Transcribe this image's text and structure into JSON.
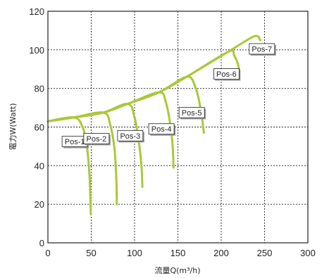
{
  "chart_data": {
    "type": "line",
    "xlabel": "流量Q(m³/h)",
    "ylabel": "電力W(Watt)",
    "xlim": [
      0,
      300
    ],
    "ylim": [
      0,
      120
    ],
    "xticks": [
      "0",
      "50",
      "100",
      "150",
      "200",
      "250",
      "300"
    ],
    "yticks": [
      "0",
      "20",
      "40",
      "60",
      "80",
      "100",
      "120"
    ],
    "grid": true,
    "color": "#a9c83a",
    "envelope": {
      "x": [
        0,
        30,
        64,
        92,
        128,
        160,
        208,
        238,
        245
      ],
      "y": [
        63,
        65,
        67.5,
        72,
        78,
        86,
        99,
        107,
        105
      ]
    },
    "series": [
      {
        "name": "Pos-1",
        "x": [
          0,
          30,
          40,
          45,
          48,
          49,
          49.5
        ],
        "y": [
          63,
          65,
          60,
          50,
          35,
          22,
          15
        ]
      },
      {
        "name": "Pos-2",
        "x": [
          0,
          30,
          64,
          72,
          77,
          79,
          79.5
        ],
        "y": [
          63,
          65,
          67.5,
          61,
          48,
          32,
          20
        ]
      },
      {
        "name": "Pos-3",
        "x": [
          0,
          30,
          64,
          92,
          100,
          105,
          108,
          109
        ],
        "y": [
          63,
          65,
          67.5,
          72,
          65,
          52,
          40,
          29
        ]
      },
      {
        "name": "Pos-4",
        "x": [
          0,
          30,
          64,
          92,
          128,
          136,
          141,
          144,
          145
        ],
        "y": [
          63,
          65,
          67.5,
          72,
          78,
          73,
          62,
          50,
          39
        ]
      },
      {
        "name": "Pos-5",
        "x": [
          0,
          30,
          64,
          92,
          128,
          160,
          170,
          176,
          180
        ],
        "y": [
          63,
          65,
          67.5,
          72,
          78,
          86,
          81,
          70,
          57
        ]
      },
      {
        "name": "Pos-6",
        "x": [
          0,
          30,
          64,
          92,
          128,
          160,
          208,
          215,
          219,
          221
        ],
        "y": [
          63,
          65,
          67.5,
          72,
          78,
          86,
          99,
          97,
          93,
          89
        ]
      },
      {
        "name": "Pos-7",
        "x": [
          0,
          30,
          64,
          92,
          128,
          160,
          208,
          238,
          245
        ],
        "y": [
          63,
          65,
          67.5,
          72,
          78,
          86,
          99,
          107,
          105
        ]
      }
    ],
    "labels": [
      {
        "text": "Pos-1",
        "x": 31,
        "y": 52.5
      },
      {
        "text": "Pos-2",
        "x": 56,
        "y": 54
      },
      {
        "text": "Pos-3",
        "x": 95,
        "y": 55.5
      },
      {
        "text": "Pos-4",
        "x": 131,
        "y": 59
      },
      {
        "text": "Pos-5",
        "x": 166,
        "y": 67.5
      },
      {
        "text": "Pos-6",
        "x": 206,
        "y": 87.5
      },
      {
        "text": "Pos-7",
        "x": 247,
        "y": 100.5
      }
    ]
  }
}
